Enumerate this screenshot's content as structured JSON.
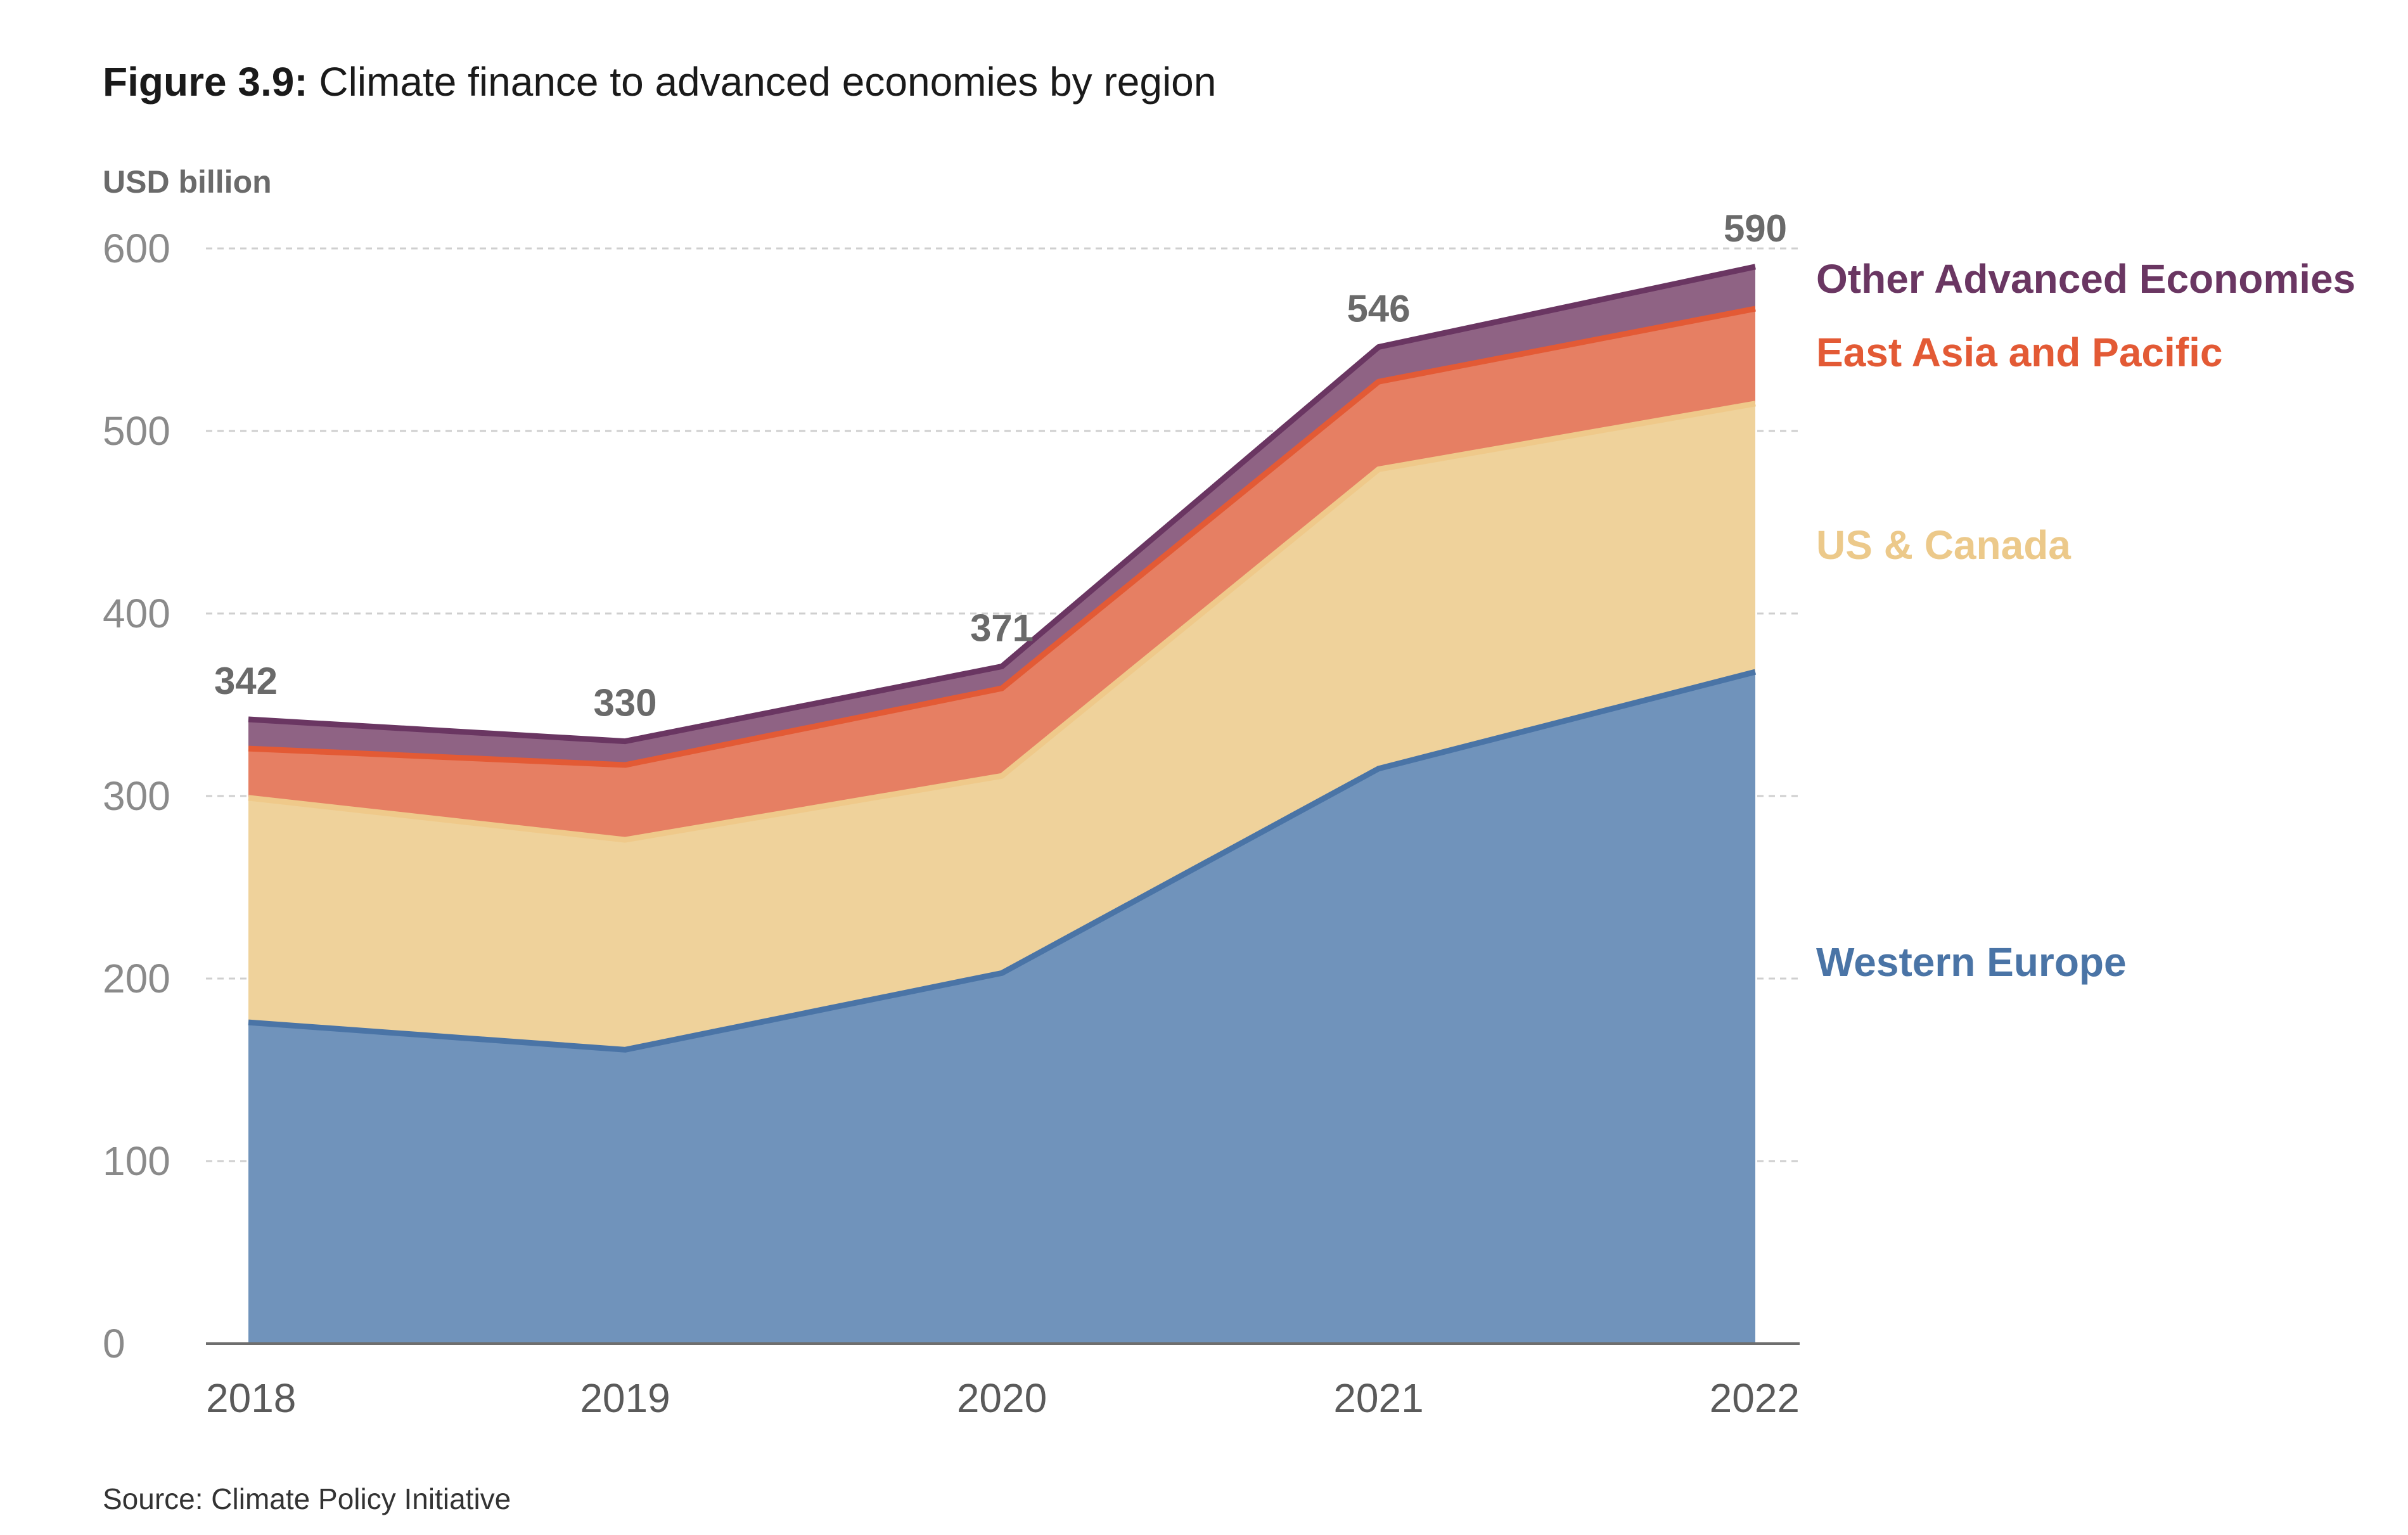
{
  "figure": {
    "label": "Figure 3.9:",
    "title": "Climate finance to advanced economies by region",
    "source": "Source: Climate Policy Initiative"
  },
  "chart_data": {
    "type": "area",
    "stacked": true,
    "ylabel": "USD billion",
    "xlabel": "",
    "ylim": [
      0,
      600
    ],
    "yticks": [
      0,
      100,
      200,
      300,
      400,
      500,
      600
    ],
    "grid": true,
    "legend": "right",
    "categories": [
      "2018",
      "2019",
      "2020",
      "2021",
      "2022"
    ],
    "series": [
      {
        "name": "Western Europe",
        "values": [
          176,
          161,
          203,
          315,
          368
        ],
        "fill": "#7093bb",
        "line": "#4a74a6",
        "label_color": "#4a74a6"
      },
      {
        "name": "US & Canada",
        "values": [
          123,
          115,
          108,
          164,
          147
        ],
        "fill": "#efd29b",
        "line": "#efc98a",
        "label_color": "#ecc98a"
      },
      {
        "name": "East Asia and Pacific",
        "values": [
          27,
          41,
          48,
          48,
          52
        ],
        "fill": "#e67f63",
        "line": "#e35a35",
        "label_color": "#e35a35"
      },
      {
        "name": "Other Advanced Economies",
        "values": [
          16,
          13,
          12,
          19,
          23
        ],
        "fill": "#8f6384",
        "line": "#6a3662",
        "label_color": "#6a3662"
      }
    ],
    "totals": [
      342,
      330,
      371,
      546,
      590
    ]
  }
}
